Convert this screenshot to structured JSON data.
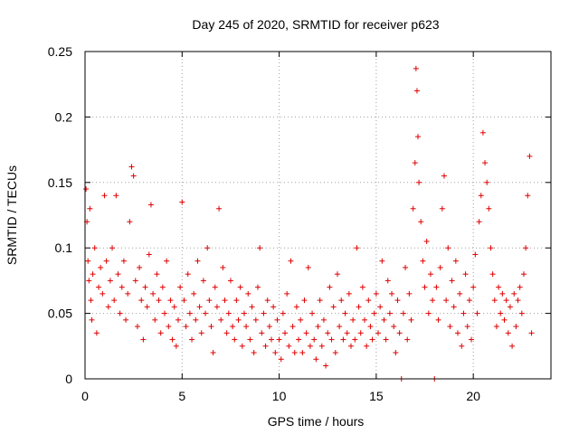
{
  "chart_data": {
    "type": "scatter",
    "title": "Day 245 of 2020, SRMTID for receiver p623",
    "xlabel": "GPS time / hours",
    "ylabel": "SRMTID / TECUs",
    "xlim": [
      0,
      24
    ],
    "ylim": [
      0,
      0.25
    ],
    "xticks": [
      0,
      5,
      10,
      15,
      20
    ],
    "xtick_labels": [
      "0",
      "5",
      "10",
      "15",
      "20"
    ],
    "yticks": [
      0,
      0.05,
      0.1,
      0.15,
      0.2,
      0.25
    ],
    "ytick_labels": [
      "0",
      "0.05",
      "0.1",
      "0.15",
      "0.2",
      "0.25"
    ],
    "grid": true,
    "marker": "+",
    "color": "#e00000",
    "series": [
      {
        "name": "SRMTID",
        "points": [
          [
            0.05,
            0.145
          ],
          [
            0.1,
            0.12
          ],
          [
            0.15,
            0.09
          ],
          [
            0.2,
            0.075
          ],
          [
            0.25,
            0.13
          ],
          [
            0.3,
            0.06
          ],
          [
            0.35,
            0.045
          ],
          [
            0.4,
            0.08
          ],
          [
            0.5,
            0.1
          ],
          [
            0.6,
            0.035
          ],
          [
            0.7,
            0.07
          ],
          [
            0.8,
            0.085
          ],
          [
            0.9,
            0.065
          ],
          [
            1.0,
            0.14
          ],
          [
            1.1,
            0.09
          ],
          [
            1.2,
            0.055
          ],
          [
            1.3,
            0.075
          ],
          [
            1.4,
            0.1
          ],
          [
            1.5,
            0.06
          ],
          [
            1.6,
            0.14
          ],
          [
            1.7,
            0.08
          ],
          [
            1.8,
            0.05
          ],
          [
            1.9,
            0.07
          ],
          [
            2.0,
            0.09
          ],
          [
            2.1,
            0.045
          ],
          [
            2.2,
            0.065
          ],
          [
            2.3,
            0.12
          ],
          [
            2.4,
            0.162
          ],
          [
            2.5,
            0.155
          ],
          [
            2.6,
            0.075
          ],
          [
            2.7,
            0.04
          ],
          [
            2.8,
            0.085
          ],
          [
            2.9,
            0.06
          ],
          [
            3.0,
            0.03
          ],
          [
            3.1,
            0.07
          ],
          [
            3.2,
            0.055
          ],
          [
            3.3,
            0.095
          ],
          [
            3.4,
            0.133
          ],
          [
            3.5,
            0.065
          ],
          [
            3.6,
            0.045
          ],
          [
            3.7,
            0.08
          ],
          [
            3.8,
            0.06
          ],
          [
            3.9,
            0.035
          ],
          [
            4.0,
            0.07
          ],
          [
            4.1,
            0.05
          ],
          [
            4.2,
            0.09
          ],
          [
            4.3,
            0.04
          ],
          [
            4.4,
            0.06
          ],
          [
            4.5,
            0.03
          ],
          [
            4.6,
            0.055
          ],
          [
            4.7,
            0.025
          ],
          [
            4.8,
            0.045
          ],
          [
            4.9,
            0.07
          ],
          [
            5.0,
            0.135
          ],
          [
            5.1,
            0.06
          ],
          [
            5.2,
            0.04
          ],
          [
            5.3,
            0.08
          ],
          [
            5.4,
            0.05
          ],
          [
            5.5,
            0.03
          ],
          [
            5.6,
            0.065
          ],
          [
            5.7,
            0.045
          ],
          [
            5.8,
            0.09
          ],
          [
            5.9,
            0.055
          ],
          [
            6.0,
            0.035
          ],
          [
            6.1,
            0.075
          ],
          [
            6.2,
            0.05
          ],
          [
            6.3,
            0.1
          ],
          [
            6.4,
            0.06
          ],
          [
            6.5,
            0.04
          ],
          [
            6.6,
            0.02
          ],
          [
            6.7,
            0.07
          ],
          [
            6.8,
            0.055
          ],
          [
            6.9,
            0.13
          ],
          [
            7.0,
            0.045
          ],
          [
            7.1,
            0.085
          ],
          [
            7.2,
            0.06
          ],
          [
            7.3,
            0.035
          ],
          [
            7.4,
            0.05
          ],
          [
            7.5,
            0.075
          ],
          [
            7.6,
            0.04
          ],
          [
            7.7,
            0.03
          ],
          [
            7.8,
            0.06
          ],
          [
            7.9,
            0.045
          ],
          [
            8.0,
            0.07
          ],
          [
            8.1,
            0.025
          ],
          [
            8.2,
            0.05
          ],
          [
            8.3,
            0.04
          ],
          [
            8.4,
            0.065
          ],
          [
            8.5,
            0.03
          ],
          [
            8.6,
            0.055
          ],
          [
            8.7,
            0.02
          ],
          [
            8.8,
            0.045
          ],
          [
            8.9,
            0.07
          ],
          [
            9.0,
            0.1
          ],
          [
            9.1,
            0.035
          ],
          [
            9.2,
            0.05
          ],
          [
            9.3,
            0.025
          ],
          [
            9.4,
            0.06
          ],
          [
            9.5,
            0.04
          ],
          [
            9.6,
            0.03
          ],
          [
            9.7,
            0.055
          ],
          [
            9.8,
            0.02
          ],
          [
            9.9,
            0.045
          ],
          [
            10.0,
            0.03
          ],
          [
            10.1,
            0.015
          ],
          [
            10.2,
            0.05
          ],
          [
            10.3,
            0.035
          ],
          [
            10.4,
            0.065
          ],
          [
            10.5,
            0.025
          ],
          [
            10.6,
            0.09
          ],
          [
            10.7,
            0.04
          ],
          [
            10.8,
            0.02
          ],
          [
            10.9,
            0.055
          ],
          [
            11.0,
            0.03
          ],
          [
            11.1,
            0.045
          ],
          [
            11.2,
            0.02
          ],
          [
            11.3,
            0.06
          ],
          [
            11.4,
            0.035
          ],
          [
            11.5,
            0.085
          ],
          [
            11.6,
            0.025
          ],
          [
            11.7,
            0.05
          ],
          [
            11.8,
            0.03
          ],
          [
            11.9,
            0.015
          ],
          [
            12.0,
            0.04
          ],
          [
            12.1,
            0.06
          ],
          [
            12.2,
            0.025
          ],
          [
            12.3,
            0.045
          ],
          [
            12.4,
            0.01
          ],
          [
            12.5,
            0.035
          ],
          [
            12.6,
            0.07
          ],
          [
            12.7,
            0.03
          ],
          [
            12.8,
            0.055
          ],
          [
            12.9,
            0.02
          ],
          [
            13.0,
            0.08
          ],
          [
            13.1,
            0.04
          ],
          [
            13.2,
            0.06
          ],
          [
            13.3,
            0.03
          ],
          [
            13.4,
            0.05
          ],
          [
            13.5,
            0.035
          ],
          [
            13.6,
            0.065
          ],
          [
            13.7,
            0.025
          ],
          [
            13.8,
            0.045
          ],
          [
            13.9,
            0.03
          ],
          [
            14.0,
            0.1
          ],
          [
            14.1,
            0.055
          ],
          [
            14.2,
            0.035
          ],
          [
            14.3,
            0.07
          ],
          [
            14.4,
            0.045
          ],
          [
            14.5,
            0.025
          ],
          [
            14.6,
            0.06
          ],
          [
            14.7,
            0.04
          ],
          [
            14.8,
            0.03
          ],
          [
            14.9,
            0.05
          ],
          [
            15.0,
            0.065
          ],
          [
            15.1,
            0.035
          ],
          [
            15.2,
            0.055
          ],
          [
            15.3,
            0.09
          ],
          [
            15.4,
            0.045
          ],
          [
            15.5,
            0.03
          ],
          [
            15.6,
            0.075
          ],
          [
            15.7,
            0.05
          ],
          [
            15.8,
            0.065
          ],
          [
            15.9,
            0.04
          ],
          [
            16.0,
            0.02
          ],
          [
            16.1,
            0.06
          ],
          [
            16.2,
            0.035
          ],
          [
            16.3,
            0.0
          ],
          [
            16.4,
            0.05
          ],
          [
            16.5,
            0.085
          ],
          [
            16.6,
            0.03
          ],
          [
            16.7,
            0.065
          ],
          [
            16.8,
            0.045
          ],
          [
            16.9,
            0.13
          ],
          [
            17.0,
            0.165
          ],
          [
            17.05,
            0.237
          ],
          [
            17.1,
            0.22
          ],
          [
            17.15,
            0.185
          ],
          [
            17.2,
            0.15
          ],
          [
            17.3,
            0.12
          ],
          [
            17.4,
            0.09
          ],
          [
            17.5,
            0.07
          ],
          [
            17.6,
            0.105
          ],
          [
            17.7,
            0.05
          ],
          [
            17.8,
            0.08
          ],
          [
            17.9,
            0.06
          ],
          [
            18.0,
            0.0
          ],
          [
            18.1,
            0.07
          ],
          [
            18.2,
            0.045
          ],
          [
            18.3,
            0.085
          ],
          [
            18.4,
            0.13
          ],
          [
            18.5,
            0.155
          ],
          [
            18.6,
            0.06
          ],
          [
            18.7,
            0.1
          ],
          [
            18.8,
            0.04
          ],
          [
            18.9,
            0.075
          ],
          [
            19.0,
            0.055
          ],
          [
            19.1,
            0.09
          ],
          [
            19.2,
            0.035
          ],
          [
            19.3,
            0.065
          ],
          [
            19.4,
            0.025
          ],
          [
            19.5,
            0.05
          ],
          [
            19.6,
            0.08
          ],
          [
            19.7,
            0.04
          ],
          [
            19.8,
            0.06
          ],
          [
            19.9,
            0.03
          ],
          [
            20.0,
            0.07
          ],
          [
            20.1,
            0.095
          ],
          [
            20.2,
            0.05
          ],
          [
            20.3,
            0.12
          ],
          [
            20.4,
            0.14
          ],
          [
            20.5,
            0.188
          ],
          [
            20.6,
            0.165
          ],
          [
            20.7,
            0.15
          ],
          [
            20.8,
            0.13
          ],
          [
            20.9,
            0.1
          ],
          [
            21.0,
            0.08
          ],
          [
            21.1,
            0.06
          ],
          [
            21.2,
            0.04
          ],
          [
            21.3,
            0.07
          ],
          [
            21.4,
            0.05
          ],
          [
            21.5,
            0.065
          ],
          [
            21.6,
            0.045
          ],
          [
            21.7,
            0.06
          ],
          [
            21.8,
            0.035
          ],
          [
            21.9,
            0.055
          ],
          [
            22.0,
            0.025
          ],
          [
            22.1,
            0.065
          ],
          [
            22.2,
            0.04
          ],
          [
            22.3,
            0.06
          ],
          [
            22.4,
            0.07
          ],
          [
            22.5,
            0.05
          ],
          [
            22.6,
            0.08
          ],
          [
            22.7,
            0.1
          ],
          [
            22.8,
            0.14
          ],
          [
            22.9,
            0.17
          ],
          [
            23.0,
            0.035
          ]
        ]
      }
    ]
  }
}
